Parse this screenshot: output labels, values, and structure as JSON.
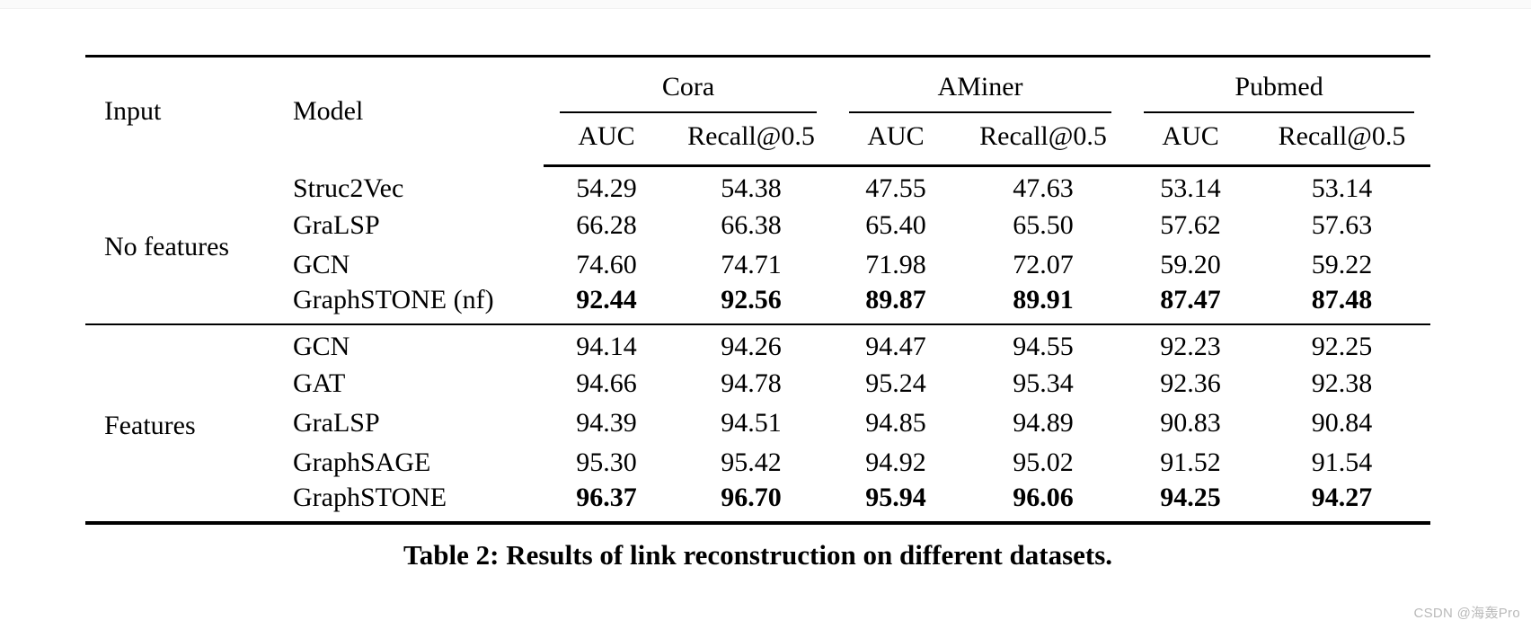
{
  "table": {
    "caption": "Table 2: Results of link reconstruction on different datasets.",
    "col_headers": {
      "input": "Input",
      "model": "Model"
    },
    "groups": [
      {
        "label": "Cora",
        "sub": [
          "AUC",
          "Recall@0.5"
        ]
      },
      {
        "label": "AMiner",
        "sub": [
          "AUC",
          "Recall@0.5"
        ]
      },
      {
        "label": "Pubmed",
        "sub": [
          "AUC",
          "Recall@0.5"
        ]
      }
    ],
    "sections": [
      {
        "input_label": "No features",
        "rows": [
          {
            "model": "Struc2Vec",
            "values": [
              "54.29",
              "54.38",
              "47.55",
              "47.63",
              "53.14",
              "53.14"
            ],
            "bold": false
          },
          {
            "model": "GraLSP",
            "values": [
              "66.28",
              "66.38",
              "65.40",
              "65.50",
              "57.62",
              "57.63"
            ],
            "bold": false
          },
          {
            "model": "GCN",
            "values": [
              "74.60",
              "74.71",
              "71.98",
              "72.07",
              "59.20",
              "59.22"
            ],
            "bold": false
          },
          {
            "model": "GraphSTONE (nf)",
            "values": [
              "92.44",
              "92.56",
              "89.87",
              "89.91",
              "87.47",
              "87.48"
            ],
            "bold": true
          }
        ]
      },
      {
        "input_label": "Features",
        "rows": [
          {
            "model": "GCN",
            "values": [
              "94.14",
              "94.26",
              "94.47",
              "94.55",
              "92.23",
              "92.25"
            ],
            "bold": false
          },
          {
            "model": "GAT",
            "values": [
              "94.66",
              "94.78",
              "95.24",
              "95.34",
              "92.36",
              "92.38"
            ],
            "bold": false
          },
          {
            "model": "GraLSP",
            "values": [
              "94.39",
              "94.51",
              "94.85",
              "94.89",
              "90.83",
              "90.84"
            ],
            "bold": false
          },
          {
            "model": "GraphSAGE",
            "values": [
              "95.30",
              "95.42",
              "94.92",
              "95.02",
              "91.52",
              "91.54"
            ],
            "bold": false
          },
          {
            "model": "GraphSTONE",
            "values": [
              "96.37",
              "96.70",
              "95.94",
              "96.06",
              "94.25",
              "94.27"
            ],
            "bold": true
          }
        ]
      }
    ]
  },
  "chart_data": {
    "type": "table",
    "title": "Table 2: Results of link reconstruction on different datasets.",
    "column_groups": [
      "Cora",
      "AMiner",
      "Pubmed"
    ],
    "metrics": [
      "AUC",
      "Recall@0.5"
    ],
    "rows": [
      {
        "input": "No features",
        "model": "Struc2Vec",
        "cora": [
          54.29,
          54.38
        ],
        "aminer": [
          47.55,
          47.63
        ],
        "pubmed": [
          53.14,
          53.14
        ]
      },
      {
        "input": "No features",
        "model": "GraLSP",
        "cora": [
          66.28,
          66.38
        ],
        "aminer": [
          65.4,
          65.5
        ],
        "pubmed": [
          57.62,
          57.63
        ]
      },
      {
        "input": "No features",
        "model": "GCN",
        "cora": [
          74.6,
          74.71
        ],
        "aminer": [
          71.98,
          72.07
        ],
        "pubmed": [
          59.2,
          59.22
        ]
      },
      {
        "input": "No features",
        "model": "GraphSTONE (nf)",
        "cora": [
          92.44,
          92.56
        ],
        "aminer": [
          89.87,
          89.91
        ],
        "pubmed": [
          87.47,
          87.48
        ]
      },
      {
        "input": "Features",
        "model": "GCN",
        "cora": [
          94.14,
          94.26
        ],
        "aminer": [
          94.47,
          94.55
        ],
        "pubmed": [
          92.23,
          92.25
        ]
      },
      {
        "input": "Features",
        "model": "GAT",
        "cora": [
          94.66,
          94.78
        ],
        "aminer": [
          95.24,
          95.34
        ],
        "pubmed": [
          92.36,
          92.38
        ]
      },
      {
        "input": "Features",
        "model": "GraLSP",
        "cora": [
          94.39,
          94.51
        ],
        "aminer": [
          94.85,
          94.89
        ],
        "pubmed": [
          90.83,
          90.84
        ]
      },
      {
        "input": "Features",
        "model": "GraphSAGE",
        "cora": [
          95.3,
          95.42
        ],
        "aminer": [
          94.92,
          95.02
        ],
        "pubmed": [
          91.52,
          91.54
        ]
      },
      {
        "input": "Features",
        "model": "GraphSTONE",
        "cora": [
          96.37,
          96.7
        ],
        "aminer": [
          95.94,
          96.06
        ],
        "pubmed": [
          94.25,
          94.27
        ]
      }
    ]
  },
  "watermark": {
    "text": "CSDN @海轰Pro"
  }
}
